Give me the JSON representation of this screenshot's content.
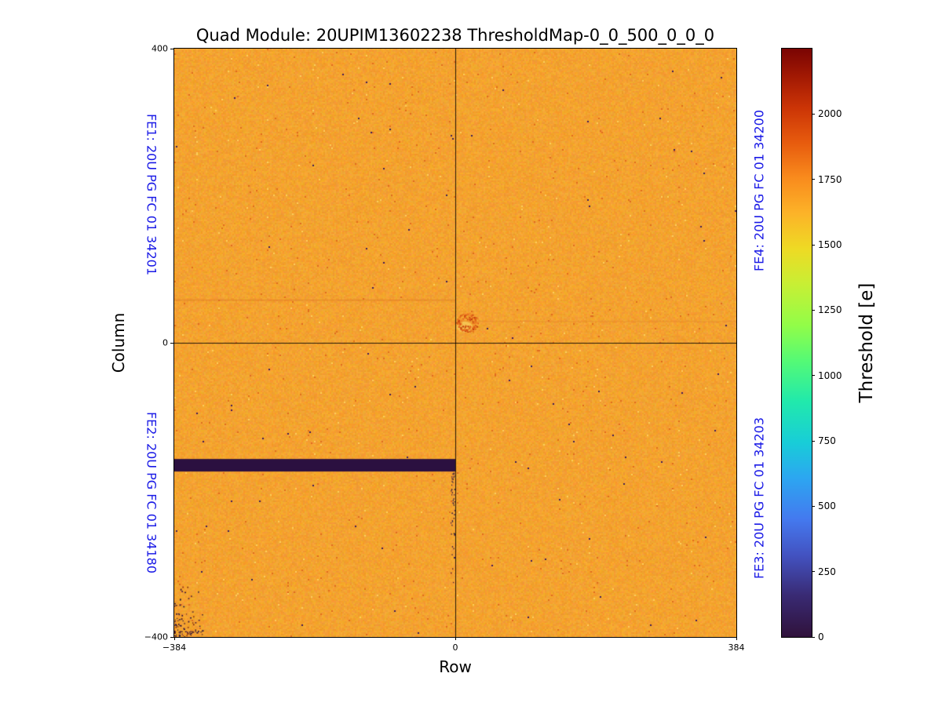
{
  "colors": {
    "background": "#ffffff",
    "frame": "#000000",
    "fe_label": "#1a1ae6"
  },
  "chart_data": {
    "type": "heatmap",
    "title": "Quad Module: 20UPIM13602238 ThresholdMap-0_0_500_0_0_0",
    "xlabel": "Row",
    "ylabel": "Column",
    "x_range": [
      -384,
      384
    ],
    "y_range": [
      -400,
      400
    ],
    "x_ticks": [
      {
        "v": -384,
        "label": "−384"
      },
      {
        "v": 0,
        "label": "0"
      },
      {
        "v": 384,
        "label": "384"
      }
    ],
    "y_ticks": [
      {
        "v": 400,
        "label": "400"
      },
      {
        "v": 0,
        "label": "0"
      },
      {
        "v": -400,
        "label": "−400"
      }
    ],
    "grid": false,
    "quadrant_divider_lines": {
      "vertical_at_row": 0,
      "horizontal_at_col": 0
    },
    "colorbar": {
      "label": "Threshold [e]",
      "min": 0,
      "max": 2250,
      "ticks": [
        {
          "v": 0,
          "label": "0"
        },
        {
          "v": 250,
          "label": "250"
        },
        {
          "v": 500,
          "label": "500"
        },
        {
          "v": 750,
          "label": "750"
        },
        {
          "v": 1000,
          "label": "1000"
        },
        {
          "v": 1250,
          "label": "1250"
        },
        {
          "v": 1500,
          "label": "1500"
        },
        {
          "v": 1750,
          "label": "1750"
        },
        {
          "v": 2000,
          "label": "2000"
        }
      ],
      "colormap": "turbo",
      "gradient_stops": [
        {
          "t": 0.0,
          "c": "#30123b"
        },
        {
          "t": 0.07,
          "c": "#392a73"
        },
        {
          "t": 0.14,
          "c": "#4353c2"
        },
        {
          "t": 0.2,
          "c": "#4479ef"
        },
        {
          "t": 0.27,
          "c": "#2ca6f1"
        },
        {
          "t": 0.33,
          "c": "#18cdd8"
        },
        {
          "t": 0.4,
          "c": "#21e9ac"
        },
        {
          "t": 0.47,
          "c": "#55fa75"
        },
        {
          "t": 0.53,
          "c": "#92fd48"
        },
        {
          "t": 0.6,
          "c": "#c8ef34"
        },
        {
          "t": 0.66,
          "c": "#eeda24"
        },
        {
          "t": 0.72,
          "c": "#fcb328"
        },
        {
          "t": 0.78,
          "c": "#f98b1d"
        },
        {
          "t": 0.84,
          "c": "#e75b0e"
        },
        {
          "t": 0.9,
          "c": "#cb3406"
        },
        {
          "t": 0.95,
          "c": "#a41a03"
        },
        {
          "t": 1.0,
          "c": "#7a0403"
        }
      ]
    },
    "annotations": [
      {
        "id": "FE1",
        "text": "FE1: 20U PG FC 01 34201",
        "position": "left-top"
      },
      {
        "id": "FE2",
        "text": "FE2: 20U PG FC 01 34180",
        "position": "left-bottom"
      },
      {
        "id": "FE3",
        "text": "FE3: 20U PG FC 01 34203",
        "position": "right-bottom"
      },
      {
        "id": "FE4",
        "text": "FE4: 20U PG FC 01 34200",
        "position": "right-top"
      }
    ],
    "data_summary": {
      "typical_threshold_e": 1500,
      "dead_band": "rows -384 to 0, columns about -158 to -175, threshold ~0 (dark band in FE2 quadrant)",
      "hot_spot": "small cluster of raised thresholds (~1800-2100 e) near row 16, col 28 in FE4 quadrant",
      "corner_noise": "scattered low/dead pixels near the bottom-left corner and just left of row 0 below the dead band",
      "faint_streaks": "slightly raised threshold rows near col 58 (left half) and col 29 (right half)"
    },
    "features": {
      "base": {
        "color": [
          244,
          163,
          48
        ],
        "noise": [
          14,
          24,
          22
        ],
        "dark_speck_color": [
          224,
          108,
          30
        ],
        "deep_speck_color": [
          62,
          28,
          88
        ],
        "light_speck_color": [
          252,
          206,
          92
        ]
      },
      "dead_band": {
        "row_min": -384,
        "row_max": 0,
        "col_min": -175,
        "col_max": -158,
        "color": "#2b1040"
      },
      "hot_spot": {
        "row": 16,
        "col": 28,
        "radius_px": 14,
        "colors": [
          "#e05a17",
          "#ee8125",
          "#c2410c"
        ],
        "halo_color": "rgba(248,222,110,0.55)"
      },
      "streaks": [
        {
          "row_min": -384,
          "row_max": 0,
          "col": 58,
          "color": "rgba(222,118,36,0.45)",
          "h": 2
        },
        {
          "row_min": 0,
          "row_max": 384,
          "col": 29,
          "color": "rgba(226,128,42,0.30)",
          "h": 2
        }
      ],
      "corner_speckles": {
        "count": 95,
        "colors": [
          "#33143a",
          "#7e2a10"
        ]
      },
      "center_speckles": {
        "count": 42,
        "color": "#3a1a40"
      },
      "crosshair_color": "rgba(0,0,0,0.85)"
    }
  }
}
